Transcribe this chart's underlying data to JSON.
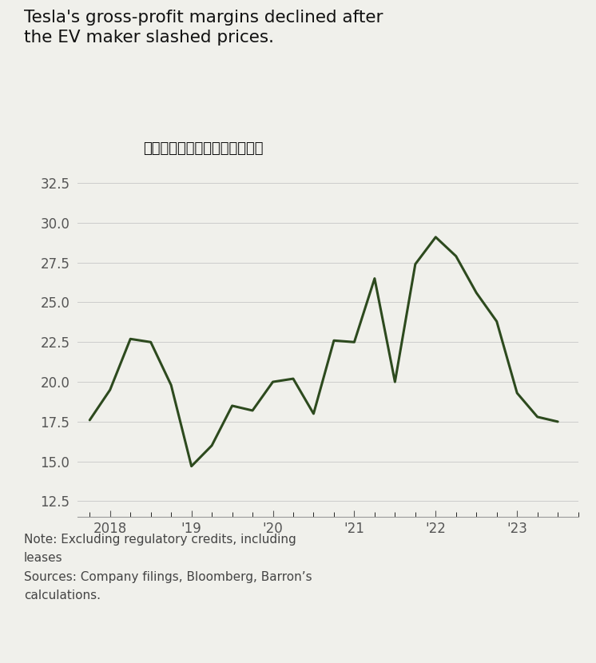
{
  "title_line1": "Tesla's gross-profit margins declined after",
  "title_line2": "the EV maker slashed prices.",
  "subtitle_zh": "特斯拉毛利率降至两年多来最低",
  "note1": "Note: Excluding regulatory credits, including",
  "note2": "leases",
  "note3": "Sources: Company filings, Bloomberg, Barron’s",
  "note4": "calculations.",
  "line_color": "#2d4a1e",
  "line_width": 2.2,
  "background_color": "#f0f0eb",
  "yticks": [
    12.5,
    15.0,
    17.5,
    20.0,
    22.5,
    25.0,
    27.5,
    30.0,
    32.5
  ],
  "ylim": [
    11.5,
    34.0
  ],
  "x_data": [
    2017.75,
    2018.0,
    2018.25,
    2018.5,
    2018.75,
    2019.0,
    2019.25,
    2019.5,
    2019.75,
    2020.0,
    2020.25,
    2020.5,
    2020.75,
    2021.0,
    2021.25,
    2021.5,
    2021.75,
    2022.0,
    2022.25,
    2022.5,
    2022.75,
    2023.0,
    2023.25,
    2023.5
  ],
  "y_data": [
    17.6,
    19.5,
    22.7,
    22.5,
    19.8,
    14.7,
    16.0,
    18.5,
    18.2,
    20.0,
    20.2,
    18.0,
    22.6,
    22.5,
    26.5,
    20.0,
    27.4,
    29.1,
    27.9,
    25.6,
    23.8,
    19.3,
    17.8,
    17.5
  ],
  "xtick_positions": [
    2018,
    2019,
    2020,
    2021,
    2022,
    2023
  ],
  "xtick_labels": [
    "2018",
    "'19",
    "'20",
    "'21",
    "'22",
    "'23"
  ]
}
